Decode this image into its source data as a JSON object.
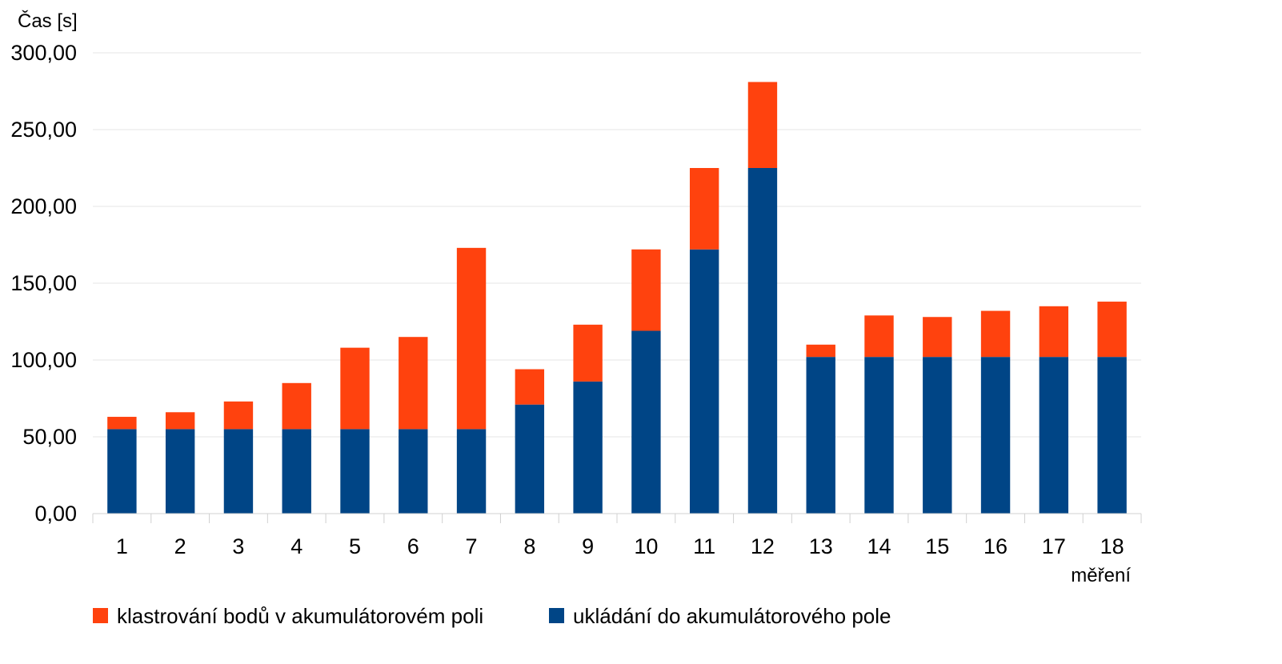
{
  "chart_data": {
    "type": "bar",
    "stacked": true,
    "title": "",
    "ylabel": "Čas [s]",
    "xlabel": "měření",
    "ylim": [
      0,
      300
    ],
    "y_ticks": [
      "0,00",
      "50,00",
      "100,00",
      "150,00",
      "200,00",
      "250,00",
      "300,00"
    ],
    "y_tick_values": [
      0,
      50,
      100,
      150,
      200,
      250,
      300
    ],
    "grid": true,
    "legend_position": "bottom",
    "categories": [
      "1",
      "2",
      "3",
      "4",
      "5",
      "6",
      "7",
      "8",
      "9",
      "10",
      "11",
      "12",
      "13",
      "14",
      "15",
      "16",
      "17",
      "18"
    ],
    "series": [
      {
        "name": "ukládání do akumulátorového pole",
        "color": "#004586",
        "values": [
          55,
          55,
          55,
          55,
          55,
          55,
          55,
          71,
          86,
          119,
          172,
          225,
          102,
          102,
          102,
          102,
          102,
          102
        ]
      },
      {
        "name": "klastrování bodů v akumulátorovém poli",
        "color": "#ff420e",
        "values": [
          8,
          11,
          18,
          30,
          53,
          60,
          118,
          23,
          37,
          53,
          53,
          56,
          8,
          27,
          26,
          30,
          33,
          36
        ]
      }
    ],
    "legend_order": [
      1,
      0
    ]
  }
}
